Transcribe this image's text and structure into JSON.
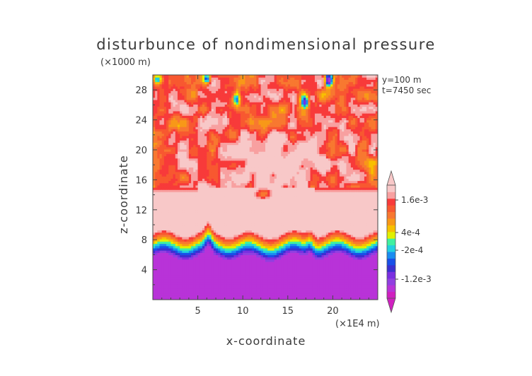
{
  "chart_data": {
    "type": "heatmap",
    "title": "disturbunce of nondimensional pressure",
    "xlabel": "x-coordinate",
    "ylabel": "z-coordinate",
    "x_unit": "(×1E4 m)",
    "y_unit": "(×1000 m)",
    "annotations": [
      "y=100 m",
      "t=7450 sec"
    ],
    "xlim": [
      0,
      25
    ],
    "ylim": [
      0,
      30
    ],
    "x_ticks": [
      5,
      10,
      15,
      20
    ],
    "y_ticks": [
      4,
      8,
      12,
      16,
      20,
      24,
      28
    ],
    "colorbar": {
      "levels": [
        -0.0016,
        -0.0014,
        -0.0012,
        -0.001,
        -0.0008,
        -0.0006,
        -0.0004,
        -0.0002,
        0,
        0.0002,
        0.0004,
        0.0006,
        0.0008,
        0.001,
        0.0012,
        0.0014,
        0.0016
      ],
      "colors": [
        "#d020c0",
        "#b833d8",
        "#9040e0",
        "#7a2fe0",
        "#3a30d0",
        "#1850e8",
        "#1a8cf0",
        "#22d0e0",
        "#40f0a0",
        "#e0f000",
        "#f8c000",
        "#f89818",
        "#f87830",
        "#f85830",
        "#f83a3a",
        "#f8a0a0",
        "#f8c8c8"
      ],
      "tick_labels": [
        "1.6e-3",
        "4e-4",
        "-2e-4",
        "-1.2e-3"
      ]
    },
    "field_description": [
      {
        "z_range": [
          0,
          7
        ],
        "value": -0.0015
      },
      {
        "z_range": [
          7,
          9
        ],
        "value": "transition negative to positive"
      },
      {
        "z_range": [
          9,
          15
        ],
        "value": 0.0016
      },
      {
        "z_range": [
          15,
          30
        ],
        "value": "mixed 4e-4 to 1.6e-3 with local minima"
      }
    ]
  }
}
